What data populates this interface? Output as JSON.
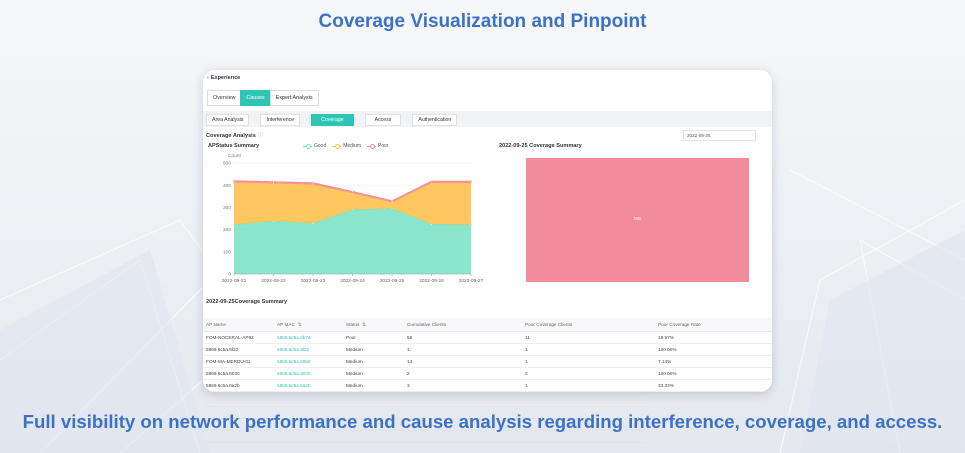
{
  "page": {
    "headline": "Coverage Visualization and Pinpoint",
    "footline": "Full visibility on network performance and cause analysis regarding interference, coverage, and access."
  },
  "colors": {
    "accent": "#2ec4b6",
    "good": "#7de3c6",
    "medium": "#ffc14d",
    "poor": "#f28b9b",
    "title_blue": "#3b72c6"
  },
  "app": {
    "section_title": "Experience",
    "main_tabs": [
      "Overview",
      "Causes",
      "Expert Analysis"
    ],
    "active_main_tab": "Causes",
    "sub_tabs": [
      "Area Analysis",
      "Interference",
      "Coverage",
      "Access",
      "Authentication"
    ],
    "active_sub_tab": "Coverage",
    "coverage_analysis_title": "Coverage Analysis",
    "help_icon": "question-circle-icon",
    "date_value": "2022-09-25"
  },
  "ap_status": {
    "title": "APStatus Summary",
    "count_label": "Count",
    "legend": [
      "Good",
      "Medium",
      "Poor"
    ]
  },
  "chart_data": [
    {
      "type": "area",
      "title": "APStatus Summary",
      "ylabel": "Count",
      "ylim": [
        0,
        500
      ],
      "yticks": [
        0,
        100,
        200,
        300,
        400,
        500
      ],
      "stacked": true,
      "grid": true,
      "legend_position": "top",
      "x": [
        "2022-09-21",
        "2022-09-22",
        "2022-09-23",
        "2022-09-24",
        "2022-09-25",
        "2022-09-26",
        "2022-09-27"
      ],
      "series": [
        {
          "name": "Good",
          "color": "#7de3c6",
          "values": [
            222,
            238,
            228,
            290,
            295,
            225,
            222
          ]
        },
        {
          "name": "Medium",
          "color": "#ffc14d",
          "values": [
            190,
            170,
            175,
            75,
            28,
            185,
            188
          ]
        },
        {
          "name": "Poor",
          "color": "#f28b9b",
          "values": [
            8,
            8,
            8,
            7,
            7,
            8,
            8
          ]
        }
      ]
    },
    {
      "type": "heatmap",
      "title": "2022-09-25 Coverage Summary",
      "cells": [
        {
          "label": "MG",
          "color": "#f28b9b"
        }
      ]
    }
  ],
  "coverage_summary": {
    "title": "2022-09-25 Coverage Summary",
    "cell_label": "MG"
  },
  "table": {
    "title": "2022-09-25Coverage Summary",
    "columns": [
      "AP Name",
      "AP MAC",
      "Status",
      "Cumulative Clients",
      "Poor Coverage Clients",
      "Poor Coverage Rate"
    ],
    "rows": [
      [
        "FOM-NOCERAL-AP92",
        "5869.6c5a.6b7a",
        "Poor",
        "58",
        "11",
        "18.97%"
      ],
      [
        "5869.6c5a.5f22",
        "5869.6c5a.5f22",
        "Medium",
        "1",
        "1",
        "100.00%"
      ],
      [
        "FOM-MA-MERDU-01",
        "5869.6c5a.69b8",
        "Medium",
        "14",
        "1",
        "7.14%"
      ],
      [
        "5869.6c5a.6030",
        "5869.6c5a.6030",
        "Medium",
        "2",
        "2",
        "100.00%"
      ],
      [
        "5869.6c5a.6a2b",
        "5869.6c5a.6a2b",
        "Medium",
        "3",
        "1",
        "33.33%"
      ]
    ]
  }
}
